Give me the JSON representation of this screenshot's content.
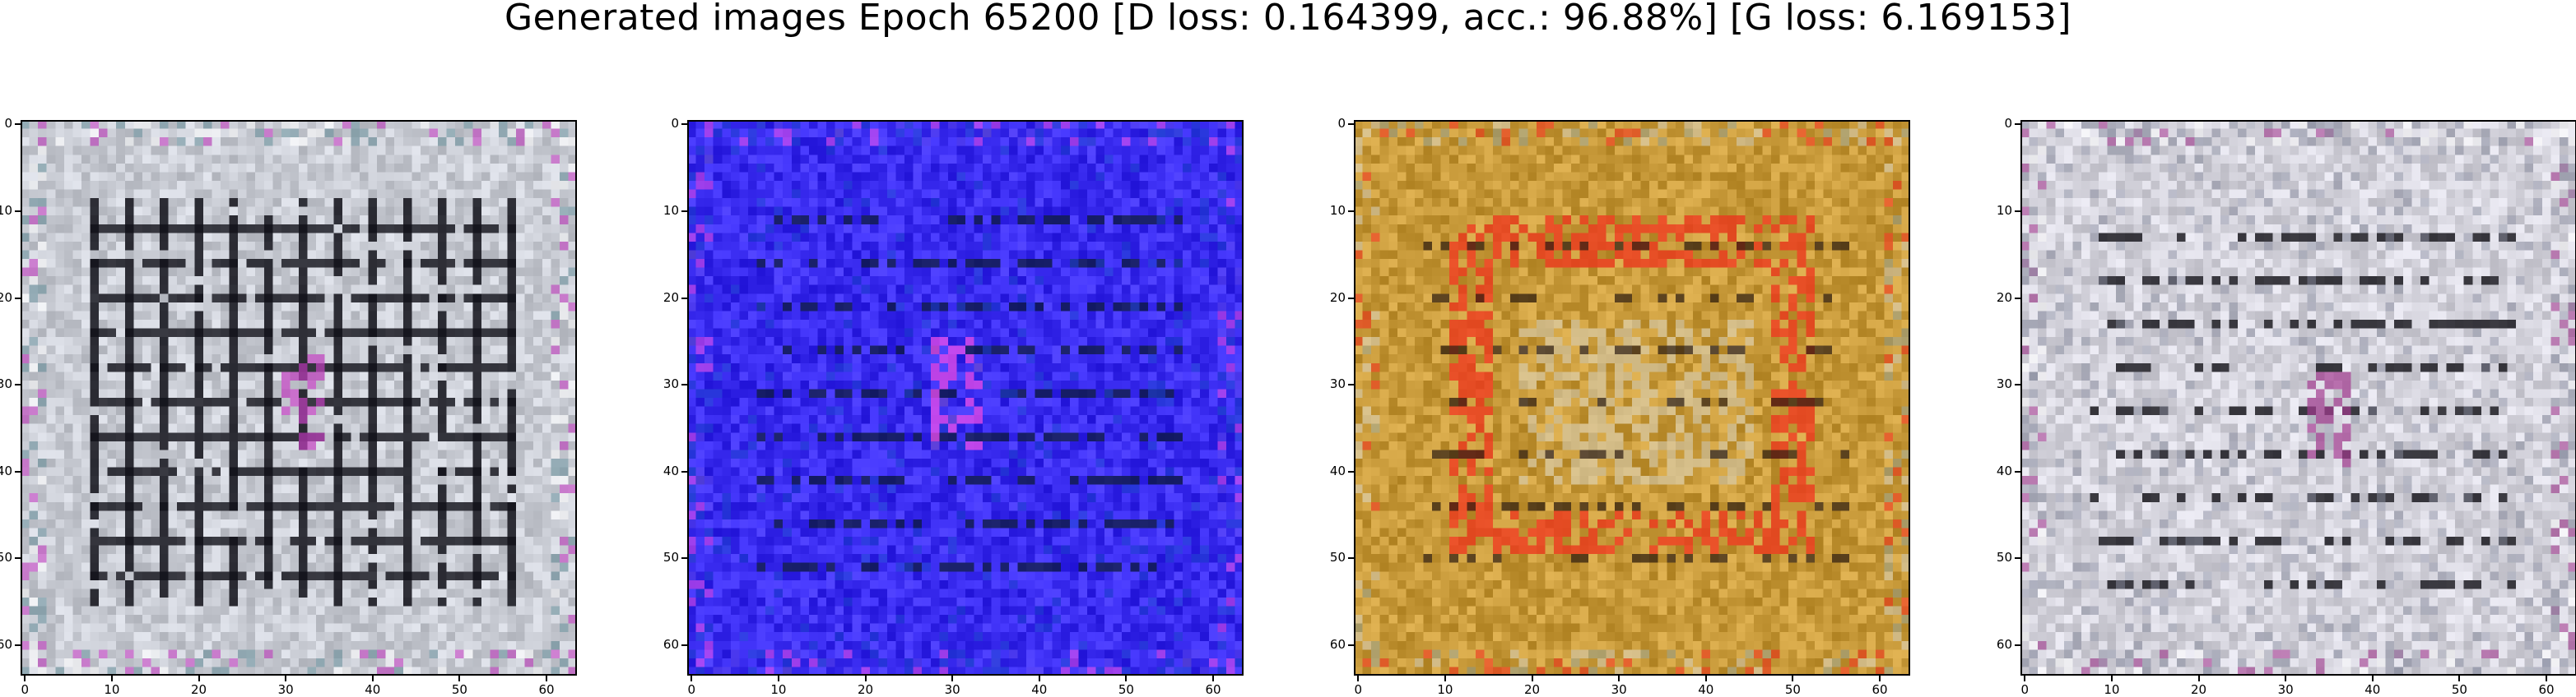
{
  "title": "Generated images Epoch 65200 [D loss: 0.164399, acc.: 96.88%] [G loss: 6.169153]",
  "axes": {
    "ticks": [
      "0",
      "10",
      "20",
      "30",
      "40",
      "50",
      "60"
    ],
    "range": [
      0,
      63
    ]
  },
  "panels": [
    {
      "name": "sample-1",
      "theme": "grey-grid",
      "base": "#c9ccd4",
      "dark": "#101018",
      "accents": [
        "#c23fc0",
        "#ffffff",
        "#6a8f9a"
      ]
    },
    {
      "name": "sample-2",
      "theme": "blue",
      "base": "#3a2cf0",
      "dark": "#0c1a3a",
      "accents": [
        "#e04be8",
        "#5b46f2",
        "#1e3fcf"
      ]
    },
    {
      "name": "sample-3",
      "theme": "gold",
      "base": "#c89a3a",
      "dark": "#2a1a10",
      "accents": [
        "#f0341e",
        "#d8d0b8",
        "#9aa18a"
      ]
    },
    {
      "name": "sample-4",
      "theme": "grey-light",
      "base": "#d4d3dc",
      "dark": "#111016",
      "accents": [
        "#a13a8e",
        "#8a8ea0",
        "#ffffff"
      ]
    }
  ]
}
